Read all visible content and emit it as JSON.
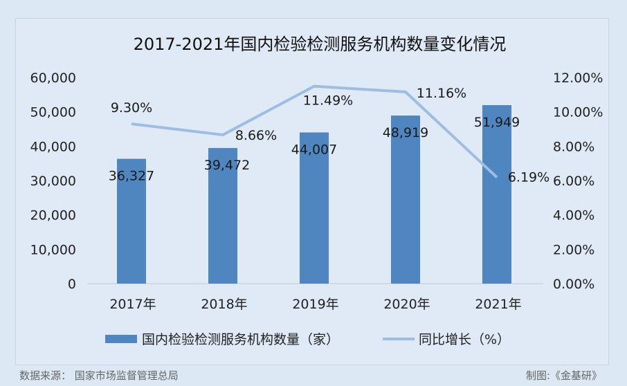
{
  "chart_data": {
    "type": "bar+line",
    "title": "2017-2021年国内检验检测服务机构数量变化情况",
    "categories": [
      "2017年",
      "2018年",
      "2019年",
      "2020年",
      "2021年"
    ],
    "series": [
      {
        "name": "国内检验检测服务机构数量（家）",
        "type": "bar",
        "axis": "left",
        "values": [
          36327,
          39472,
          44007,
          48919,
          51949
        ],
        "labels": [
          "36,327",
          "39,472",
          "44,007",
          "48,919",
          "51,949"
        ]
      },
      {
        "name": "同比增长（%）",
        "type": "line",
        "axis": "right",
        "values": [
          9.3,
          8.66,
          11.49,
          11.16,
          6.19
        ],
        "labels": [
          "9.30%",
          "8.66%",
          "11.49%",
          "11.16%",
          "6.19%"
        ]
      }
    ],
    "y_left": {
      "min": 0,
      "max": 60000,
      "ticks": [
        "0",
        "10,000",
        "20,000",
        "30,000",
        "40,000",
        "50,000",
        "60,000"
      ]
    },
    "y_right": {
      "min": 0,
      "max": 12,
      "ticks": [
        "0.00%",
        "2.00%",
        "4.00%",
        "6.00%",
        "8.00%",
        "10.00%",
        "12.00%"
      ]
    },
    "legend_position": "bottom",
    "grid": false,
    "colors": {
      "bar": "#4f86c0",
      "line": "#9dbde3"
    }
  },
  "footer": {
    "source": "数据来源：  国家市场监督管理总局",
    "credit": "制图:《金基研》"
  }
}
